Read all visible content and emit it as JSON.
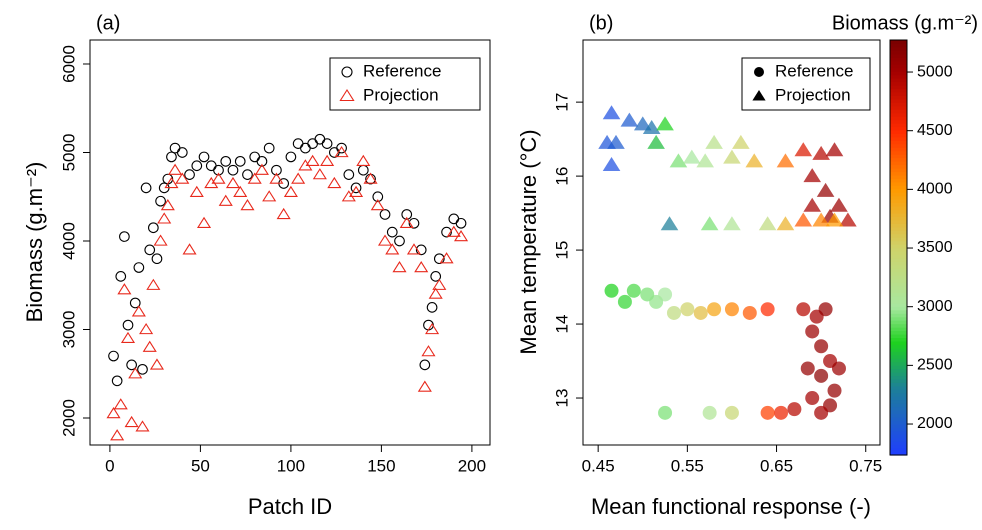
{
  "chart_data": [
    {
      "type": "scatter",
      "label": "(a)",
      "x_label": "Patch ID",
      "y_label": "Biomass (g.m⁻²)",
      "xlim": [
        -11,
        210
      ],
      "ylim": [
        1695,
        6271
      ],
      "xticks": [
        0,
        50,
        100,
        150,
        200
      ],
      "yticks": [
        2000,
        3000,
        4000,
        5000,
        6000
      ],
      "legend": "top-right",
      "series": [
        {
          "name": "Reference",
          "marker": "circle",
          "color": "#000000",
          "x": [
            2,
            4,
            6,
            8,
            10,
            12,
            14,
            16,
            18,
            20,
            22,
            24,
            26,
            28,
            30,
            32,
            34,
            36,
            40,
            44,
            48,
            52,
            56,
            60,
            64,
            68,
            72,
            76,
            80,
            84,
            88,
            92,
            96,
            100,
            104,
            108,
            112,
            116,
            120,
            124,
            128,
            132,
            136,
            140,
            144,
            148,
            152,
            156,
            160,
            164,
            168,
            172,
            174,
            176,
            178,
            180,
            182,
            186,
            190,
            194
          ],
          "values": [
            2700,
            2420,
            3600,
            4050,
            3050,
            2600,
            3300,
            3700,
            2550,
            4600,
            3900,
            4150,
            3800,
            4450,
            4600,
            4700,
            4950,
            5050,
            5000,
            4750,
            4850,
            4950,
            4850,
            4800,
            4900,
            4800,
            4900,
            4750,
            4950,
            4900,
            5050,
            4800,
            4650,
            4950,
            5100,
            5050,
            5100,
            5150,
            5100,
            5000,
            5050,
            4750,
            4600,
            4800,
            4700,
            4500,
            4300,
            4100,
            4000,
            4300,
            4200,
            3900,
            2600,
            3050,
            3250,
            3600,
            3800,
            4100,
            4250,
            4200
          ]
        },
        {
          "name": "Projection",
          "marker": "triangle",
          "color": "#e8291c",
          "x": [
            2,
            4,
            6,
            8,
            10,
            12,
            14,
            16,
            18,
            20,
            22,
            24,
            26,
            28,
            30,
            32,
            34,
            36,
            40,
            44,
            48,
            52,
            56,
            60,
            64,
            68,
            72,
            76,
            80,
            84,
            88,
            92,
            96,
            100,
            104,
            108,
            112,
            116,
            120,
            124,
            128,
            132,
            136,
            140,
            144,
            148,
            152,
            156,
            160,
            164,
            168,
            172,
            174,
            176,
            178,
            180,
            182,
            186,
            190,
            194
          ],
          "values": [
            2050,
            1800,
            2150,
            3450,
            2900,
            1950,
            2500,
            3200,
            1900,
            3000,
            2800,
            3500,
            2600,
            4000,
            4250,
            4400,
            4650,
            4800,
            4700,
            3900,
            4550,
            4200,
            4650,
            4700,
            4450,
            4650,
            4550,
            4400,
            4700,
            4800,
            4500,
            4700,
            4300,
            4550,
            4700,
            4850,
            4900,
            4750,
            4900,
            4650,
            5000,
            4500,
            4550,
            4900,
            4700,
            4400,
            4000,
            3900,
            3700,
            4200,
            3900,
            3700,
            2350,
            2750,
            3000,
            3400,
            3500,
            3800,
            4100,
            4050
          ]
        }
      ]
    },
    {
      "type": "scatter",
      "label": "(b)",
      "x_label": "Mean functional response (-)",
      "y_label": "Mean temperature (°C)",
      "xlim": [
        0.433,
        0.766
      ],
      "ylim": [
        12.365,
        17.84
      ],
      "xticks": [
        0.45,
        0.55,
        0.65,
        0.75
      ],
      "yticks": [
        13,
        14,
        15,
        16,
        17
      ],
      "legend": "top-right",
      "colorbar": {
        "title": "Biomass (g.m⁻²)",
        "lim": [
          1736,
          5273
        ],
        "ticks": [
          2000,
          2500,
          3000,
          3500,
          4000,
          4500,
          5000
        ],
        "colorscale": [
          [
            1736,
            "#1f3dff"
          ],
          [
            2300,
            "#1d7f9a"
          ],
          [
            2700,
            "#1ed21e"
          ],
          [
            3000,
            "#a8e8a0"
          ],
          [
            3500,
            "#cfd36a"
          ],
          [
            4000,
            "#ff9a00"
          ],
          [
            4500,
            "#ff2a00"
          ],
          [
            5000,
            "#a50000"
          ],
          [
            5273,
            "#7a0000"
          ]
        ]
      },
      "series": [
        {
          "name": "Reference",
          "marker": "circle",
          "x": [
            0.465,
            0.48,
            0.49,
            0.505,
            0.515,
            0.525,
            0.535,
            0.55,
            0.565,
            0.58,
            0.6,
            0.62,
            0.64,
            0.68,
            0.695,
            0.705,
            0.69,
            0.7,
            0.71,
            0.685,
            0.7,
            0.715,
            0.69,
            0.71,
            0.72,
            0.67,
            0.655,
            0.64,
            0.6,
            0.575,
            0.525,
            0.7
          ],
          "values": [
            14.45,
            14.3,
            14.45,
            14.4,
            14.3,
            14.4,
            14.15,
            14.2,
            14.15,
            14.2,
            14.2,
            14.15,
            14.2,
            14.2,
            14.1,
            14.2,
            13.9,
            13.7,
            13.5,
            13.4,
            13.3,
            13.1,
            13.0,
            12.9,
            13.4,
            12.85,
            12.8,
            12.8,
            12.8,
            12.8,
            12.8,
            12.8
          ],
          "biomass": [
            2700,
            2750,
            2800,
            2900,
            2950,
            3000,
            3300,
            3500,
            3700,
            3900,
            4100,
            4300,
            4500,
            4900,
            5000,
            5100,
            5050,
            5100,
            5000,
            5100,
            5150,
            5100,
            5000,
            5100,
            5050,
            4900,
            4600,
            4400,
            3400,
            3100,
            2900,
            5000
          ]
        },
        {
          "name": "Projection",
          "marker": "triangle",
          "x": [
            0.465,
            0.485,
            0.5,
            0.51,
            0.525,
            0.46,
            0.47,
            0.465,
            0.515,
            0.54,
            0.555,
            0.57,
            0.58,
            0.6,
            0.61,
            0.625,
            0.66,
            0.68,
            0.7,
            0.715,
            0.69,
            0.705,
            0.72,
            0.69,
            0.71,
            0.73,
            0.68,
            0.66,
            0.64,
            0.6,
            0.575,
            0.53,
            0.7,
            0.715
          ],
          "values": [
            16.85,
            16.75,
            16.7,
            16.65,
            16.7,
            16.45,
            16.45,
            16.15,
            16.45,
            16.2,
            16.25,
            16.2,
            16.45,
            16.25,
            16.45,
            16.2,
            16.2,
            16.35,
            16.3,
            16.35,
            16.0,
            15.8,
            15.6,
            15.6,
            15.45,
            15.4,
            15.4,
            15.35,
            15.35,
            15.35,
            15.35,
            15.35,
            15.4,
            15.4
          ],
          "biomass": [
            1900,
            2000,
            2100,
            2200,
            2700,
            1950,
            2000,
            1900,
            2600,
            2900,
            3000,
            3100,
            3200,
            3400,
            3500,
            3800,
            4200,
            4700,
            4900,
            5000,
            5000,
            5100,
            5050,
            5000,
            5100,
            4900,
            4300,
            3800,
            3300,
            3100,
            2900,
            2300,
            4100,
            4000
          ]
        }
      ]
    }
  ]
}
